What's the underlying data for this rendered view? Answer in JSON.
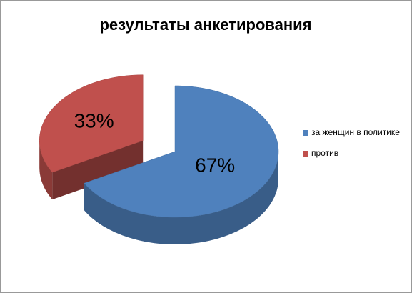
{
  "chart_data": {
    "type": "pie",
    "title": "результаты анкетирования",
    "categories": [
      "за женщин в политике",
      "против"
    ],
    "values": [
      67,
      33
    ],
    "value_labels": [
      "67%",
      "33%"
    ],
    "colors": [
      "#4f81bd",
      "#c0504d"
    ],
    "legend": "right"
  }
}
